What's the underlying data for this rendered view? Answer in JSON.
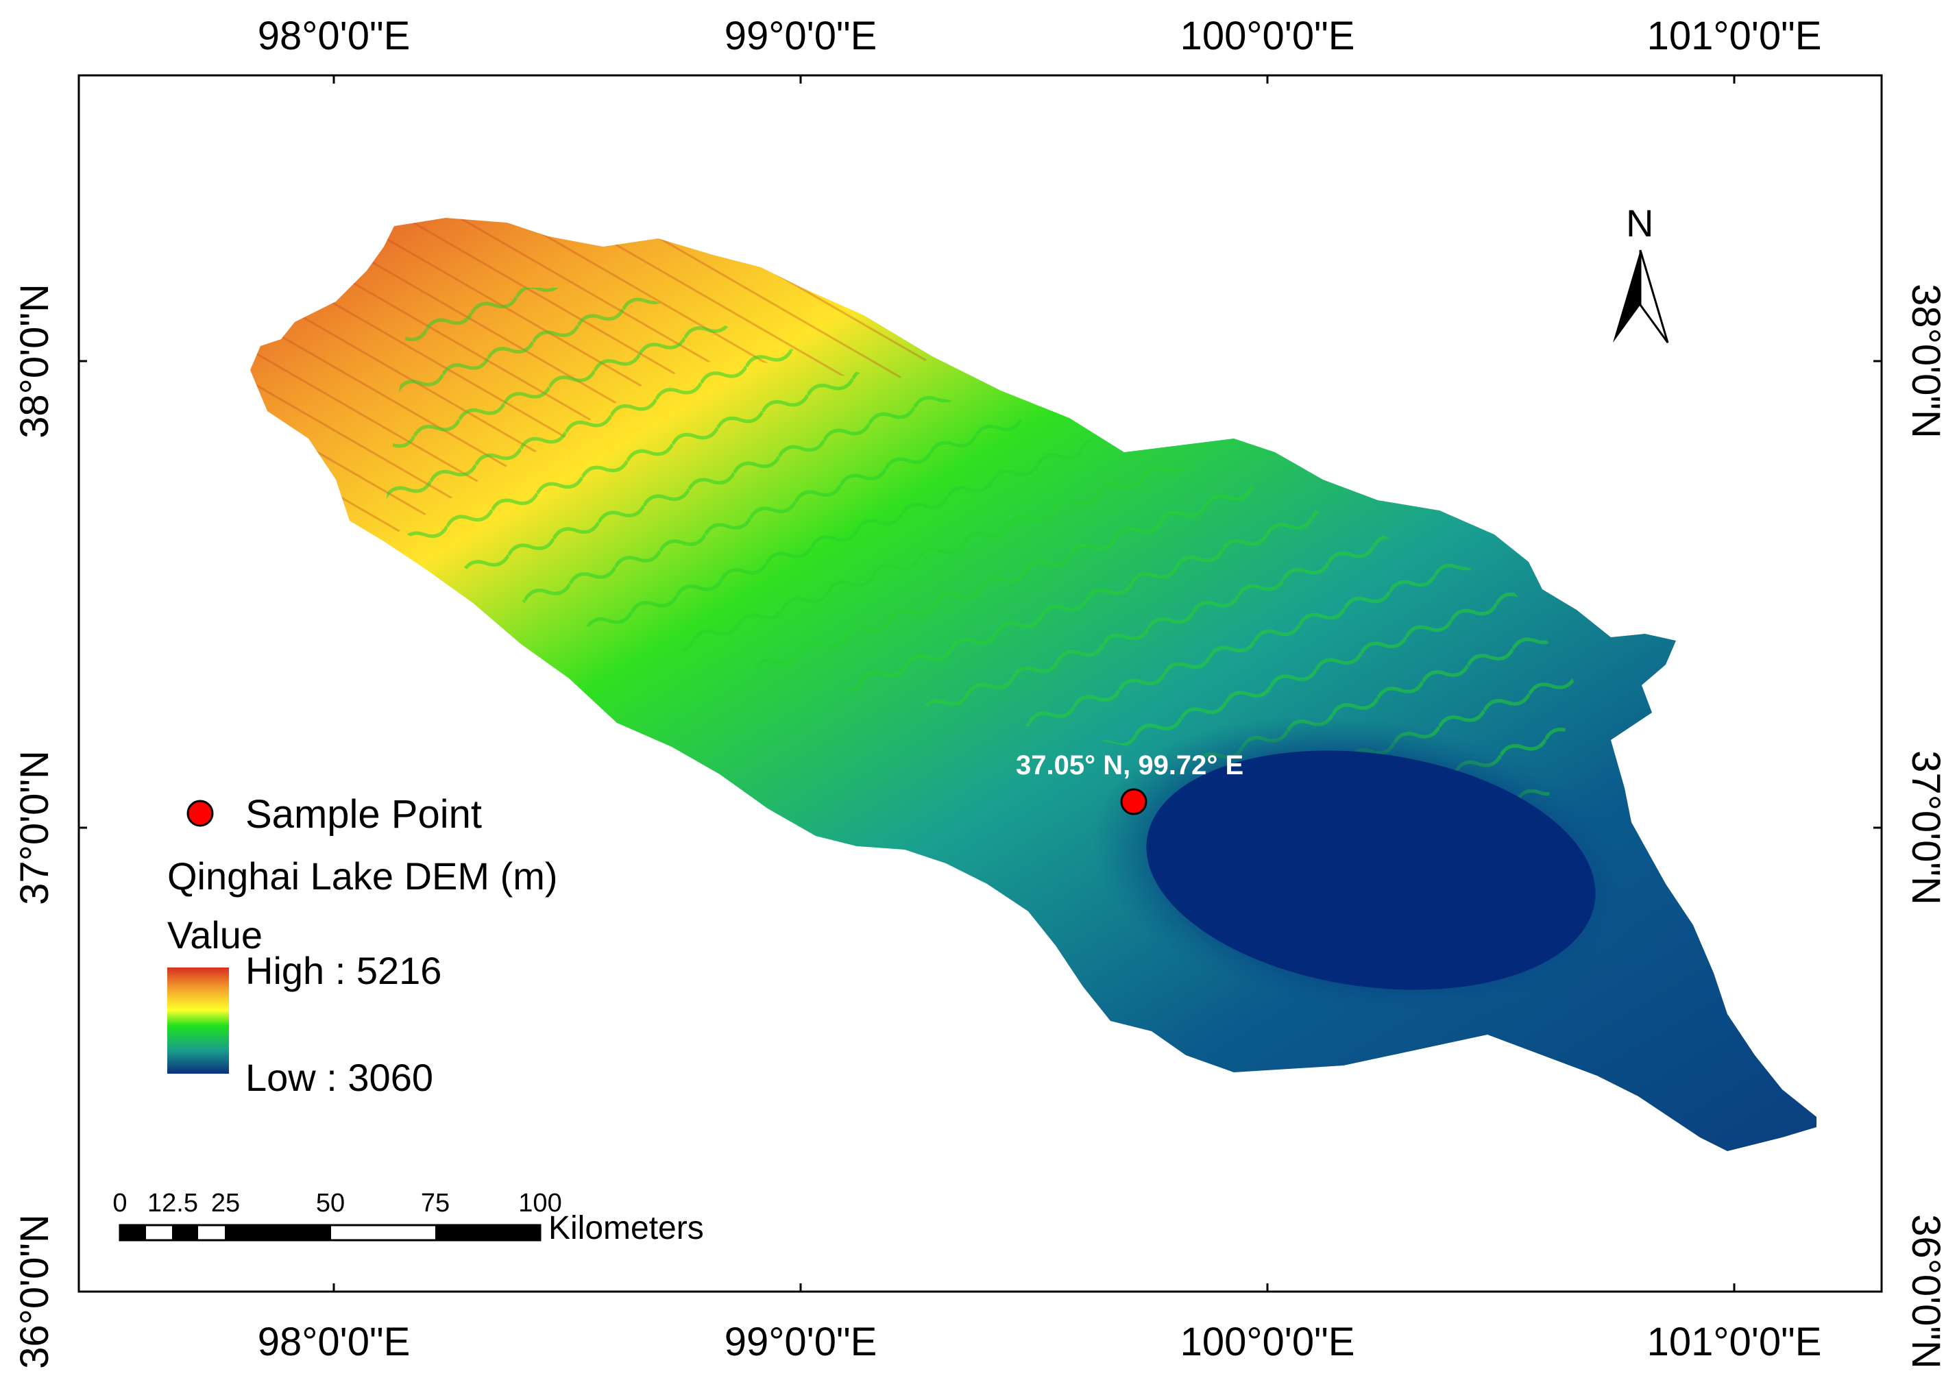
{
  "graticule": {
    "lon_labels": [
      "98°0'0\"E",
      "99°0'0\"E",
      "100°0'0\"E",
      "101°0'0\"E"
    ],
    "lat_labels": [
      "38°0'0\"N",
      "37°0'0\"N",
      "36°0'0\"N"
    ]
  },
  "north_arrow": {
    "label": "N"
  },
  "sample_point": {
    "legend_label": "Sample Point",
    "annotation": "37.05° N, 99.72° E",
    "lat": 37.05,
    "lon": 99.72,
    "color": "#ff0000"
  },
  "legend": {
    "title": "Qinghai Lake DEM (m)",
    "value_label": "Value",
    "high_label": "High : 5216",
    "low_label": "Low : 3060",
    "high": 5216,
    "low": 3060,
    "ramp_colors": [
      "#d7301f",
      "#f4a12c",
      "#ffff2a",
      "#1ee11e",
      "#1a9e8c",
      "#0a2f7c"
    ]
  },
  "scale_bar": {
    "tick_labels": [
      "0",
      "12.5",
      "25",
      "50",
      "75",
      "100"
    ],
    "unit": "Kilometers"
  },
  "dem": {
    "lake_color": "#032a7a"
  }
}
